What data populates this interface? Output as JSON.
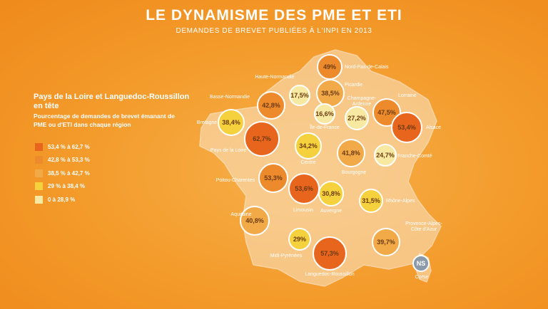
{
  "title": "LE DYNAMISME DES PME ET ETI",
  "subtitle": "DEMANDES DE BREVET PUBLIÉES À L'INPI EN 2013",
  "legend": {
    "heading": "Pays de la Loire et Languedoc-Roussillon en tête",
    "description": "Pourcentage de demandes de brevet émanant de PME ou d'ETI dans chaque région",
    "classes": [
      {
        "label": "53,4 % à 62,7 %",
        "color": "#e8651e"
      },
      {
        "label": "42,8 % à 53,3 %",
        "color": "#ed8a2c"
      },
      {
        "label": "38,5 % à 42,7 %",
        "color": "#f1aa47"
      },
      {
        "label": "29 % à 38,4 %",
        "color": "#f4d13d"
      },
      {
        "label": "0 à 28,9 %",
        "color": "#f8e9a2"
      }
    ]
  },
  "regions": [
    {
      "name": "Nord-Pas-de-Calais",
      "value": "49%",
      "class": 1,
      "ns": false
    },
    {
      "name": "Haute-Normandie",
      "value": "17,5%",
      "class": 4,
      "ns": false
    },
    {
      "name": "Picardie",
      "value": "38,5%",
      "class": 2,
      "ns": false
    },
    {
      "name": "Basse-Normandie",
      "value": "42,8%",
      "class": 1,
      "ns": false
    },
    {
      "name": "Champagne-Ardenne",
      "value": "27,2%",
      "class": 4,
      "ns": false
    },
    {
      "name": "Lorraine",
      "value": "47,5%",
      "class": 1,
      "ns": false
    },
    {
      "name": "Alsace",
      "value": "53,4%",
      "class": 0,
      "ns": false
    },
    {
      "name": "Bretagne",
      "value": "38,4%",
      "class": 3,
      "ns": false
    },
    {
      "name": "Île-de-France",
      "value": "16,6%",
      "class": 4,
      "ns": false
    },
    {
      "name": "Pays de la Loire",
      "value": "62,7%",
      "class": 0,
      "ns": false
    },
    {
      "name": "Centre",
      "value": "34,2%",
      "class": 3,
      "ns": false
    },
    {
      "name": "Bourgogne",
      "value": "41,8%",
      "class": 2,
      "ns": false
    },
    {
      "name": "Franche-Comté",
      "value": "24,7%",
      "class": 4,
      "ns": false
    },
    {
      "name": "Poitou-Charentes",
      "value": "53,3%",
      "class": 1,
      "ns": false
    },
    {
      "name": "Limousin",
      "value": "53,6%",
      "class": 0,
      "ns": false
    },
    {
      "name": "Auvergne",
      "value": "30,8%",
      "class": 3,
      "ns": false
    },
    {
      "name": "Rhône-Alpes",
      "value": "31,5%",
      "class": 3,
      "ns": false
    },
    {
      "name": "Aquitaine",
      "value": "40,8%",
      "class": 2,
      "ns": false
    },
    {
      "name": "Midi-Pyrénées",
      "value": "29%",
      "class": 3,
      "ns": false
    },
    {
      "name": "Languedoc-Roussillon",
      "value": "57,3%",
      "class": 0,
      "ns": false
    },
    {
      "name": "Provence-Alpes-Côte d'Azur",
      "value": "39,7%",
      "class": 2,
      "ns": false
    },
    {
      "name": "Corse",
      "value": "NS",
      "class": null,
      "ns": true
    }
  ],
  "ns_color": "#8a9aa8"
}
